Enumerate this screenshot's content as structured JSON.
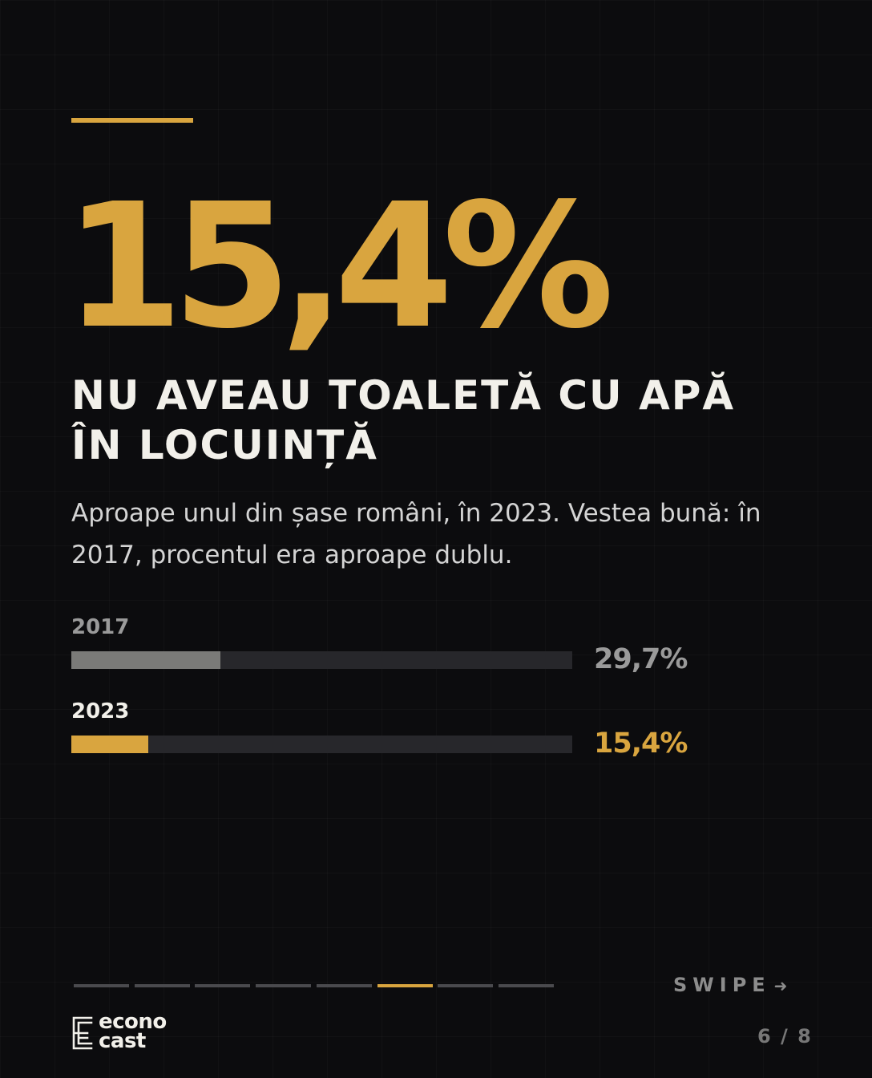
{
  "colors": {
    "accent": "#d9a53f",
    "muted_bar": "#7a7a78",
    "track": "#27272b"
  },
  "headline": {
    "stat": "15,4%",
    "line1": "NU AVEAU TOALETĂ CU APĂ",
    "line2": "ÎN LOCUINȚĂ"
  },
  "subtitle": "Aproape unul din șase români, în 2023. Vestea bună: în 2017, procentul era aproape dublu.",
  "chart_data": {
    "type": "bar",
    "orientation": "horizontal",
    "title": "",
    "xlabel": "",
    "ylabel": "",
    "categories": [
      "2017",
      "2023"
    ],
    "values": [
      29.7,
      15.4
    ],
    "value_labels": [
      "29,7%",
      "15,4%"
    ],
    "xlim": [
      0,
      100
    ],
    "bar_colors": [
      "#7a7a78",
      "#d9a53f"
    ],
    "label_colors": [
      "#9a9a9a",
      "#f2f0ea"
    ],
    "value_label_colors": [
      "#9a9a9a",
      "#d9a53f"
    ],
    "grid": false,
    "legend": "none"
  },
  "footer": {
    "swipe_label": "SWIPE",
    "swipe_arrow": "➜",
    "page_indicator": "6 / 8",
    "progress": {
      "total": 8,
      "current": 6
    },
    "logo": {
      "line1": "econo",
      "line2": "cast",
      "icon": "econocast-logo-icon"
    }
  }
}
